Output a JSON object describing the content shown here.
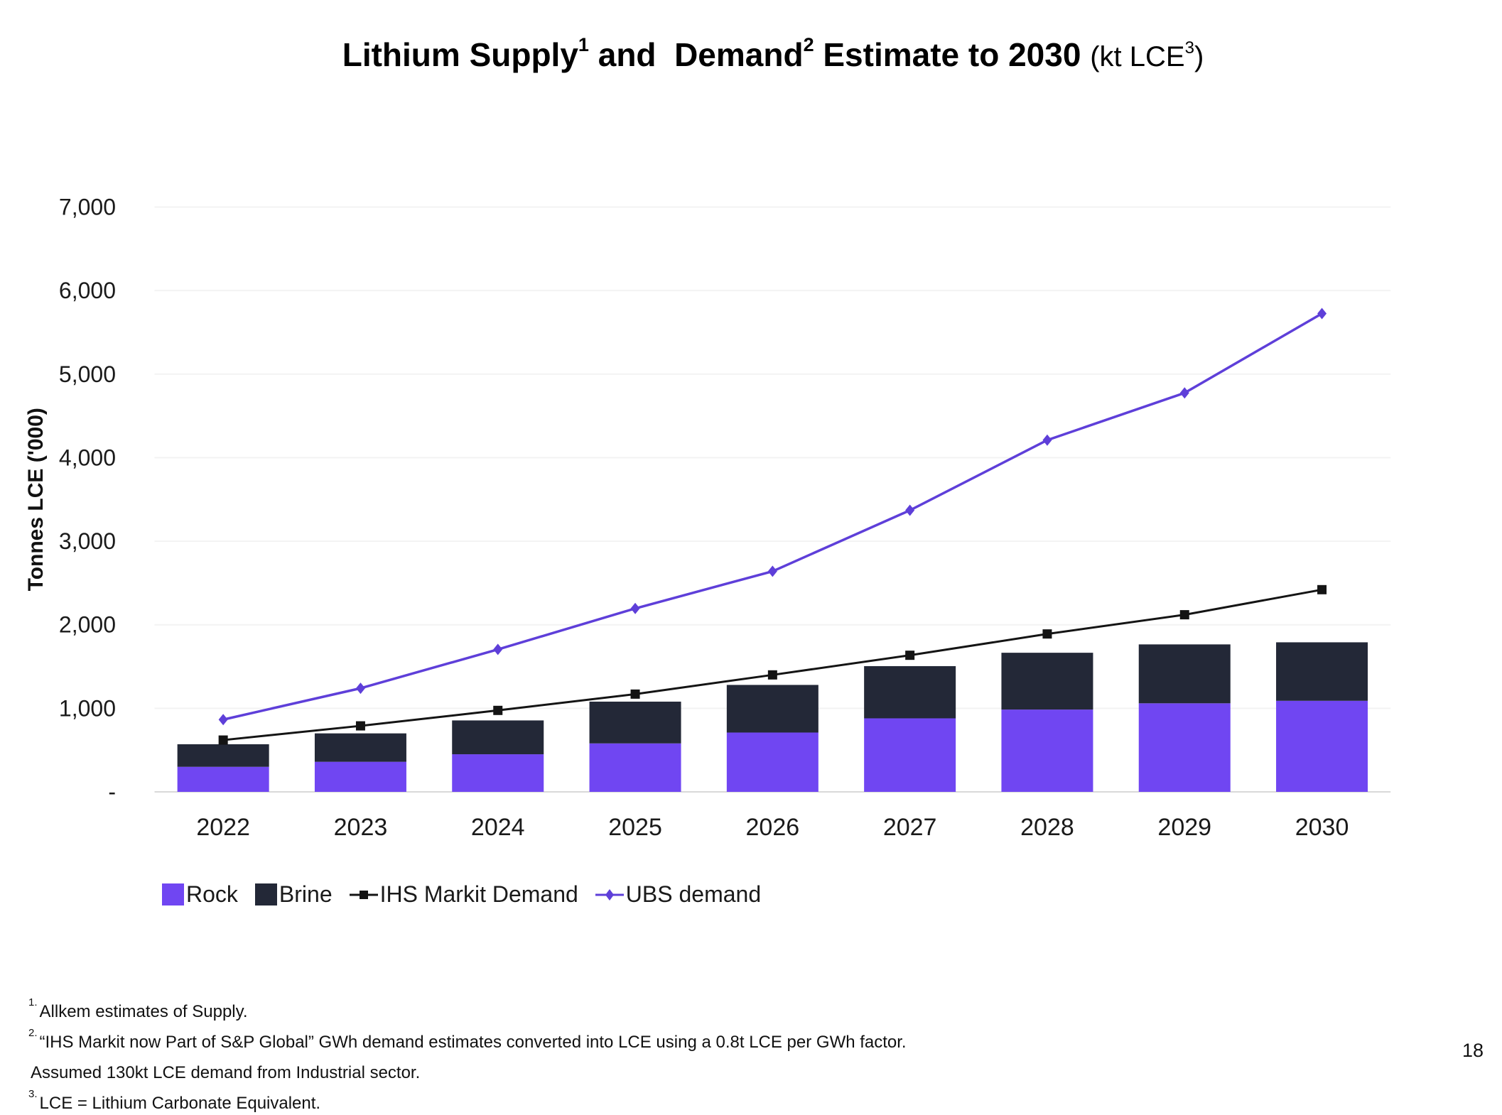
{
  "slide": {
    "title": {
      "part1": "Lithium Supply",
      "sup1": "1",
      "part2": " and  Demand",
      "sup2": "2",
      "part3": " Estimate to 2030 ",
      "unit_prefix": "(kt LCE",
      "unit_sup": "3",
      "unit_suffix": ")"
    },
    "footnotes": [
      {
        "sup": "1.",
        "text": "Allkem estimates of Supply."
      },
      {
        "sup": "2.",
        "text": "“IHS Markit now Part of S&P Global” GWh demand estimates converted into LCE using a 0.8t LCE per GWh factor."
      },
      {
        "sup": "",
        "text": "Assumed 130kt LCE demand from Industrial sector."
      },
      {
        "sup": "3.",
        "text": "LCE = Lithium Carbonate Equivalent."
      }
    ],
    "page_number": "18"
  },
  "chart_data": {
    "type": "combo",
    "title": "Lithium Supply and Demand Estimate to 2030 (kt LCE)",
    "categories": [
      "2022",
      "2023",
      "2024",
      "2025",
      "2026",
      "2027",
      "2028",
      "2029",
      "2030"
    ],
    "stacked_bars": true,
    "bar_series": [
      {
        "name": "Rock",
        "color": "#7046F2",
        "values": [
          300,
          360,
          450,
          580,
          710,
          880,
          985,
          1060,
          1090
        ]
      },
      {
        "name": "Brine",
        "color": "#232837",
        "values": [
          270,
          340,
          405,
          500,
          570,
          625,
          680,
          705,
          700
        ]
      }
    ],
    "line_series": [
      {
        "name": "IHS Markit Demand",
        "color": "#141414",
        "marker": "square",
        "values": [
          620,
          790,
          975,
          1170,
          1400,
          1635,
          1890,
          2120,
          2420
        ]
      },
      {
        "name": "UBS demand",
        "color": "#5E3FD9",
        "marker": "diamond",
        "values": [
          865,
          1240,
          1705,
          2195,
          2640,
          3370,
          4210,
          4775,
          5725
        ]
      }
    ],
    "xlabel": "",
    "ylabel": "Tonnes LCE ('000)",
    "ylim": [
      0,
      7000
    ],
    "ytick_step": 1000,
    "ytick_labels": [
      "-",
      "1,000",
      "2,000",
      "3,000",
      "4,000",
      "5,000",
      "6,000",
      "7,000"
    ],
    "grid": "horizontal",
    "grid_color": "#F3F3F3",
    "axis_line_color": "#D9D9D9",
    "legend_position": "bottom-left"
  }
}
